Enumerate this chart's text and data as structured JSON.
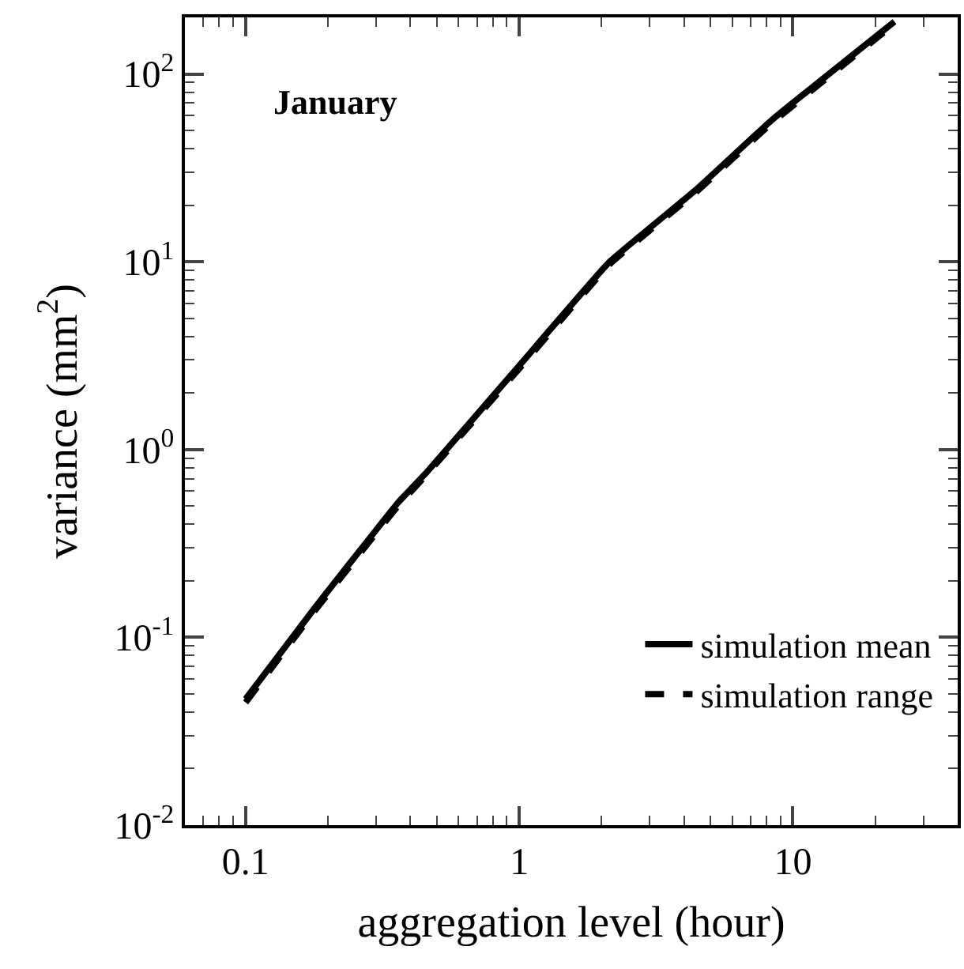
{
  "chart_data": {
    "type": "line",
    "xlabel": "aggregation level (hour)",
    "ylabel": "variance (mm$^{2}$)",
    "annotations": [
      "January"
    ],
    "x": [
      0.1,
      0.18,
      0.36,
      0.46,
      1,
      2.14,
      4.4,
      8.4,
      23.5
    ],
    "series": [
      {
        "name": "simulation mean",
        "color": "#000000",
        "line_style": "solid",
        "values": [
          0.047,
          0.145,
          0.52,
          0.76,
          2.8,
          10,
          24,
          57,
          190
        ]
      },
      {
        "name": "simulation range",
        "color": "#000000",
        "line_style": "dashed",
        "values": [
          0.045,
          0.14,
          0.5,
          0.74,
          2.7,
          9.7,
          23.3,
          55,
          185
        ]
      }
    ],
    "log": "xy",
    "xlim": [
      0.06,
      40
    ],
    "ylim": [
      0.01,
      200
    ],
    "xticks": [
      0.1,
      1,
      10
    ],
    "yticks": [
      {
        "value": 0.01,
        "label": "10$^{-2}$"
      },
      {
        "value": 0.1,
        "label": "10$^{-1}$"
      },
      {
        "value": 1,
        "label": "10$^{0}$"
      },
      {
        "value": 10,
        "label": "10$^{1}$"
      },
      {
        "value": 100,
        "label": "10$^{2}$"
      }
    ],
    "legend": "bottom right",
    "marker": "none"
  }
}
